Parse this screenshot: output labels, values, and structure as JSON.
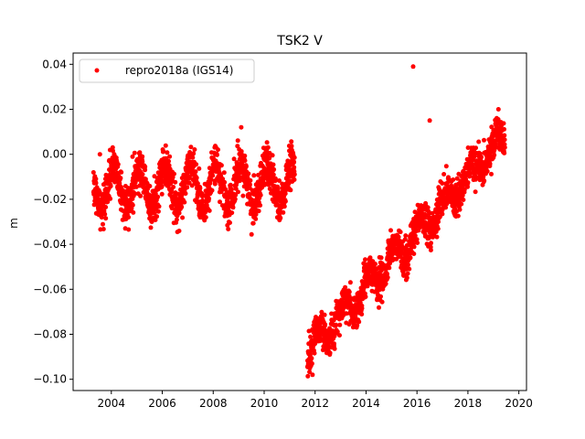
{
  "chart_data": {
    "type": "scatter",
    "title": "TSK2 V",
    "xlabel": "",
    "ylabel": "m",
    "xlim": [
      2002.5,
      2020.3
    ],
    "ylim": [
      -0.105,
      0.045
    ],
    "xticks": [
      2004,
      2006,
      2008,
      2010,
      2012,
      2014,
      2016,
      2018,
      2020
    ],
    "xtick_labels": [
      "2004",
      "2006",
      "2008",
      "2010",
      "2012",
      "2014",
      "2016",
      "2018",
      "2020"
    ],
    "yticks": [
      -0.1,
      -0.08,
      -0.06,
      -0.04,
      -0.02,
      0.0,
      0.02,
      0.04
    ],
    "ytick_labels": [
      "−0.10",
      "−0.08",
      "−0.06",
      "−0.04",
      "−0.02",
      "0.00",
      "0.02",
      "0.04"
    ],
    "grid": false,
    "legend": {
      "position": "top-left",
      "entries": [
        "repro2018a (IGS14)"
      ]
    },
    "series": [
      {
        "name": "repro2018a (IGS14)",
        "color": "#ff0000",
        "marker": "circle",
        "segments": [
          {
            "x_start": 2003.3,
            "x_end": 2011.2,
            "trend_start": -0.015,
            "trend_end": -0.013,
            "seasonal_amplitude": 0.009,
            "seasonal_peak_phase": 0.1,
            "noise_sd": 0.0045,
            "sample_points": [
              {
                "x": 2003.3,
                "y": -0.015
              },
              {
                "x": 2004.1,
                "y": -0.004
              },
              {
                "x": 2004.8,
                "y": -0.03
              },
              {
                "x": 2005.1,
                "y": -0.006
              },
              {
                "x": 2006.1,
                "y": -0.004
              },
              {
                "x": 2007.1,
                "y": -0.003
              },
              {
                "x": 2008.1,
                "y": -0.003
              },
              {
                "x": 2009.1,
                "y": -0.002
              },
              {
                "x": 2009.8,
                "y": -0.026
              },
              {
                "x": 2010.1,
                "y": -0.006
              },
              {
                "x": 2011.1,
                "y": -0.005
              }
            ]
          },
          {
            "x_start": 2011.7,
            "x_end": 2019.45,
            "trend_start": -0.088,
            "trend_end": 0.008,
            "seasonal_amplitude": 0.005,
            "seasonal_peak_phase": 0.1,
            "noise_sd": 0.004,
            "sample_points": [
              {
                "x": 2011.7,
                "y": -0.088
              },
              {
                "x": 2012.0,
                "y": -0.08
              },
              {
                "x": 2012.5,
                "y": -0.066
              },
              {
                "x": 2013.0,
                "y": -0.058
              },
              {
                "x": 2014.0,
                "y": -0.042
              },
              {
                "x": 2015.0,
                "y": -0.03
              },
              {
                "x": 2016.0,
                "y": -0.02
              },
              {
                "x": 2017.0,
                "y": -0.01
              },
              {
                "x": 2018.0,
                "y": 0.0
              },
              {
                "x": 2019.0,
                "y": 0.006
              },
              {
                "x": 2019.45,
                "y": 0.008
              }
            ]
          }
        ],
        "outliers": [
          {
            "x": 2015.85,
            "y": 0.039
          },
          {
            "x": 2009.1,
            "y": 0.012
          },
          {
            "x": 2016.5,
            "y": 0.015
          },
          {
            "x": 2012.65,
            "y": -0.08
          },
          {
            "x": 2003.55,
            "y": 0.0
          },
          {
            "x": 2011.9,
            "y": -0.098
          },
          {
            "x": 2019.2,
            "y": 0.02
          }
        ]
      }
    ]
  }
}
